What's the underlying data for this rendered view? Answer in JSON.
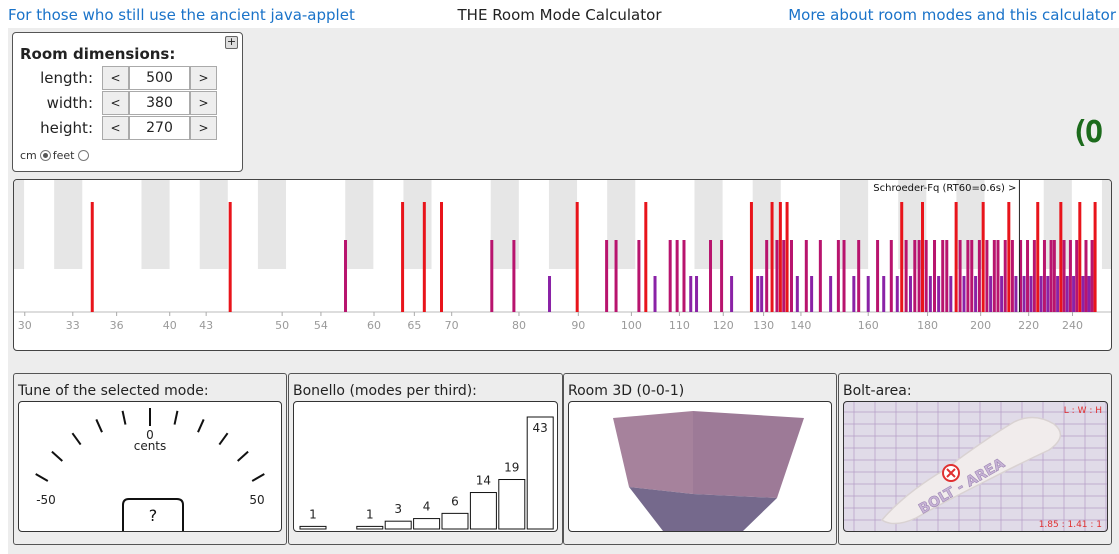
{
  "header": {
    "left_link": "For those who still use the ancient java-applet",
    "title": "THE Room Mode Calculator",
    "right_link": "More about room modes and this calculator"
  },
  "dimensions": {
    "title": "Room dimensions:",
    "expand_label": "+",
    "decrement_label": "<",
    "increment_label": ">",
    "length": {
      "label": "length:",
      "value": "500"
    },
    "width": {
      "label": "width:",
      "value": "380"
    },
    "height": {
      "label": "height:",
      "value": "270"
    },
    "unit_cm": "cm",
    "unit_feet": "feet",
    "selected_unit": "cm"
  },
  "logo": {
    "text": "(O",
    "color": "#1c6b1c"
  },
  "spectrum": {
    "schroeder_label": "Schroeder-Fq (RT60=0.6s) >",
    "schroeder_hz": 216,
    "x_ticks": [
      "30",
      "33",
      "36",
      "40",
      "43",
      "50",
      "54",
      "60",
      "65",
      "70",
      "80",
      "90",
      "100",
      "110",
      "120",
      "130",
      "140",
      "160",
      "180",
      "200",
      "220",
      "240"
    ],
    "colors": {
      "axial": "#e8141b",
      "tangential": "#b8146e",
      "oblique": "#8a22a6",
      "key_shade": "#e6e6e6"
    },
    "modes": [
      {
        "hz": 34.3,
        "type": "axial"
      },
      {
        "hz": 45.1,
        "type": "axial"
      },
      {
        "hz": 56.7,
        "type": "tangential"
      },
      {
        "hz": 63.5,
        "type": "axial"
      },
      {
        "hz": 66.3,
        "type": "axial"
      },
      {
        "hz": 68.6,
        "type": "axial"
      },
      {
        "hz": 75.8,
        "type": "tangential"
      },
      {
        "hz": 79.2,
        "type": "tangential"
      },
      {
        "hz": 85.0,
        "type": "oblique"
      },
      {
        "hz": 89.8,
        "type": "axial"
      },
      {
        "hz": 95.2,
        "type": "tangential"
      },
      {
        "hz": 97.0,
        "type": "tangential"
      },
      {
        "hz": 101.5,
        "type": "tangential"
      },
      {
        "hz": 102.9,
        "type": "axial"
      },
      {
        "hz": 104.8,
        "type": "oblique"
      },
      {
        "hz": 108.0,
        "type": "tangential"
      },
      {
        "hz": 109.5,
        "type": "tangential"
      },
      {
        "hz": 111.0,
        "type": "tangential"
      },
      {
        "hz": 112.5,
        "type": "oblique"
      },
      {
        "hz": 113.8,
        "type": "oblique"
      },
      {
        "hz": 117.0,
        "type": "tangential"
      },
      {
        "hz": 119.6,
        "type": "tangential"
      },
      {
        "hz": 122.0,
        "type": "oblique"
      },
      {
        "hz": 126.9,
        "type": "axial"
      },
      {
        "hz": 128.5,
        "type": "oblique"
      },
      {
        "hz": 129.5,
        "type": "oblique"
      },
      {
        "hz": 130.8,
        "type": "tangential"
      },
      {
        "hz": 132.2,
        "type": "axial"
      },
      {
        "hz": 133.5,
        "type": "tangential"
      },
      {
        "hz": 134.4,
        "type": "axial"
      },
      {
        "hz": 135.3,
        "type": "tangential"
      },
      {
        "hz": 136.2,
        "type": "axial"
      },
      {
        "hz": 137.4,
        "type": "tangential"
      },
      {
        "hz": 139.0,
        "type": "oblique"
      },
      {
        "hz": 141.5,
        "type": "tangential"
      },
      {
        "hz": 143.0,
        "type": "oblique"
      },
      {
        "hz": 145.5,
        "type": "tangential"
      },
      {
        "hz": 148.5,
        "type": "oblique"
      },
      {
        "hz": 150.8,
        "type": "tangential"
      },
      {
        "hz": 152.5,
        "type": "tangential"
      },
      {
        "hz": 155.5,
        "type": "oblique"
      },
      {
        "hz": 157.0,
        "type": "tangential"
      },
      {
        "hz": 160.0,
        "type": "oblique"
      },
      {
        "hz": 163.0,
        "type": "tangential"
      },
      {
        "hz": 165.0,
        "type": "oblique"
      },
      {
        "hz": 167.5,
        "type": "tangential"
      },
      {
        "hz": 169.5,
        "type": "oblique"
      },
      {
        "hz": 171.0,
        "type": "axial"
      },
      {
        "hz": 172.5,
        "type": "tangential"
      },
      {
        "hz": 174.0,
        "type": "oblique"
      },
      {
        "hz": 175.5,
        "type": "tangential"
      },
      {
        "hz": 177.0,
        "type": "tangential"
      },
      {
        "hz": 178.2,
        "type": "axial"
      },
      {
        "hz": 179.5,
        "type": "tangential"
      },
      {
        "hz": 181.0,
        "type": "oblique"
      },
      {
        "hz": 182.5,
        "type": "tangential"
      },
      {
        "hz": 184.0,
        "type": "oblique"
      },
      {
        "hz": 185.5,
        "type": "tangential"
      },
      {
        "hz": 187.0,
        "type": "tangential"
      },
      {
        "hz": 188.5,
        "type": "oblique"
      },
      {
        "hz": 190.5,
        "type": "axial"
      },
      {
        "hz": 192.0,
        "type": "tangential"
      },
      {
        "hz": 193.5,
        "type": "oblique"
      },
      {
        "hz": 195.0,
        "type": "tangential"
      },
      {
        "hz": 196.5,
        "type": "tangential"
      },
      {
        "hz": 198.0,
        "type": "oblique"
      },
      {
        "hz": 199.5,
        "type": "tangential"
      },
      {
        "hz": 201.0,
        "type": "axial"
      },
      {
        "hz": 202.5,
        "type": "tangential"
      },
      {
        "hz": 204.0,
        "type": "oblique"
      },
      {
        "hz": 205.5,
        "type": "tangential"
      },
      {
        "hz": 207.0,
        "type": "tangential"
      },
      {
        "hz": 208.5,
        "type": "oblique"
      },
      {
        "hz": 210.0,
        "type": "tangential"
      },
      {
        "hz": 211.5,
        "type": "axial"
      },
      {
        "hz": 213.0,
        "type": "tangential"
      },
      {
        "hz": 214.5,
        "type": "oblique"
      },
      {
        "hz": 216.5,
        "type": "tangential"
      },
      {
        "hz": 218.0,
        "type": "oblique"
      },
      {
        "hz": 219.5,
        "type": "tangential"
      },
      {
        "hz": 221.0,
        "type": "oblique"
      },
      {
        "hz": 222.5,
        "type": "tangential"
      },
      {
        "hz": 224.0,
        "type": "axial"
      },
      {
        "hz": 225.5,
        "type": "oblique"
      },
      {
        "hz": 227.0,
        "type": "tangential"
      },
      {
        "hz": 228.5,
        "type": "oblique"
      },
      {
        "hz": 230.0,
        "type": "tangential"
      },
      {
        "hz": 231.5,
        "type": "tangential"
      },
      {
        "hz": 233.0,
        "type": "oblique"
      },
      {
        "hz": 234.5,
        "type": "axial"
      },
      {
        "hz": 236.0,
        "type": "tangential"
      },
      {
        "hz": 237.5,
        "type": "oblique"
      },
      {
        "hz": 239.0,
        "type": "tangential"
      },
      {
        "hz": 240.5,
        "type": "oblique"
      },
      {
        "hz": 242.0,
        "type": "tangential"
      },
      {
        "hz": 243.5,
        "type": "axial"
      },
      {
        "hz": 245.0,
        "type": "oblique"
      },
      {
        "hz": 246.5,
        "type": "tangential"
      },
      {
        "hz": 248.0,
        "type": "oblique"
      },
      {
        "hz": 249.5,
        "type": "tangential"
      },
      {
        "hz": 251.0,
        "type": "axial"
      }
    ]
  },
  "tune": {
    "title": "Tune of the selected mode:",
    "center_value": "0",
    "unit": "cents",
    "min_label": "-50",
    "max_label": "50",
    "readout": "?"
  },
  "bonello": {
    "title": "Bonello (modes per third):",
    "chart_data": {
      "type": "bar",
      "values": [
        1,
        0,
        1,
        3,
        4,
        6,
        14,
        19,
        43
      ],
      "value_labels": [
        "1",
        "",
        "1",
        "3",
        "4",
        "6",
        "14",
        "19",
        "43"
      ]
    }
  },
  "room3d": {
    "title": "Room 3D (0-0-1)",
    "colors": {
      "back": "#a6829c",
      "right": "#9d7a97",
      "floor": "#75698c"
    }
  },
  "bolt": {
    "title": "Bolt-area:",
    "corner_label": "L : W : H",
    "ratio_label": "1.85 : 1.41 : 1",
    "watermark": "BOLT - AREA",
    "marker_icon": "close-circle-icon",
    "colors": {
      "bg": "#e0dbe8",
      "grid": "#b59cc6",
      "label": "#e03030"
    }
  }
}
